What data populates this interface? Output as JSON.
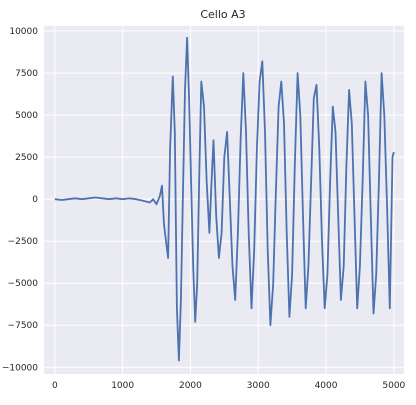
{
  "chart_data": {
    "type": "line",
    "title": "Cello A3",
    "xlabel": "",
    "ylabel": "",
    "xlim": [
      -160,
      5150
    ],
    "ylim": [
      -10400,
      10300
    ],
    "xticks": [
      0,
      1000,
      2000,
      3000,
      4000,
      5000
    ],
    "xtick_labels": [
      "0",
      "1000",
      "2000",
      "3000",
      "4000",
      "5000"
    ],
    "yticks": [
      -10000,
      -7500,
      -5000,
      -2500,
      0,
      2500,
      5000,
      7500,
      10000
    ],
    "ytick_labels": [
      "−10000",
      "−7500",
      "−5000",
      "−2500",
      "0",
      "2500",
      "5000",
      "7500",
      "10000"
    ],
    "grid": true,
    "background": "#eaeaf2",
    "grid_color": "#ffffff",
    "line_color": "#4c72b0",
    "series": [
      {
        "x": [
          0,
          100,
          200,
          300,
          400,
          500,
          600,
          700,
          800,
          900,
          1000,
          1100,
          1200,
          1300,
          1400,
          1450,
          1500,
          1550,
          1580,
          1610,
          1640,
          1670,
          1700,
          1740,
          1770,
          1800,
          1830,
          1860,
          1890,
          1920,
          1950,
          1980,
          2010,
          2040,
          2070,
          2100,
          2130,
          2160,
          2200,
          2240,
          2280,
          2310,
          2340,
          2380,
          2420,
          2460,
          2500,
          2540,
          2580,
          2620,
          2660,
          2700,
          2740,
          2780,
          2820,
          2860,
          2900,
          2940,
          2980,
          3020,
          3060,
          3100,
          3140,
          3180,
          3220,
          3260,
          3300,
          3340,
          3380,
          3420,
          3460,
          3500,
          3540,
          3580,
          3620,
          3660,
          3700,
          3740,
          3780,
          3820,
          3860,
          3900,
          3940,
          3980,
          4020,
          4060,
          4100,
          4140,
          4180,
          4220,
          4260,
          4300,
          4340,
          4380,
          4420,
          4460,
          4500,
          4540,
          4580,
          4620,
          4660,
          4700,
          4740,
          4780,
          4820,
          4860,
          4900,
          4940,
          4980,
          5000
        ],
        "y": [
          0,
          -50,
          0,
          50,
          0,
          50,
          100,
          50,
          0,
          50,
          0,
          50,
          0,
          -100,
          -200,
          0,
          -300,
          200,
          800,
          -1500,
          -2500,
          -3500,
          3000,
          7300,
          4000,
          -6500,
          -9600,
          -6000,
          500,
          6500,
          9600,
          6000,
          1000,
          -4000,
          -7300,
          -5000,
          1500,
          7000,
          5500,
          1000,
          -2000,
          1000,
          3500,
          -1000,
          -3500,
          -2000,
          2500,
          4000,
          0,
          -4000,
          -6000,
          -2000,
          3500,
          7500,
          4000,
          -2000,
          -6500,
          -3000,
          3000,
          7000,
          8200,
          4000,
          -3000,
          -7500,
          -5000,
          500,
          5500,
          7000,
          4500,
          -2000,
          -7000,
          -4500,
          2000,
          7500,
          5000,
          -1000,
          -6500,
          -4000,
          1000,
          6000,
          6800,
          3000,
          -2500,
          -6500,
          -4500,
          1000,
          5500,
          4000,
          -1000,
          -6000,
          -4000,
          2000,
          6500,
          4500,
          -1000,
          -6500,
          -4000,
          1000,
          7000,
          5000,
          -1000,
          -6800,
          -4500,
          1000,
          7500,
          5000,
          -500,
          -6500,
          2500,
          2800
        ]
      }
    ]
  }
}
